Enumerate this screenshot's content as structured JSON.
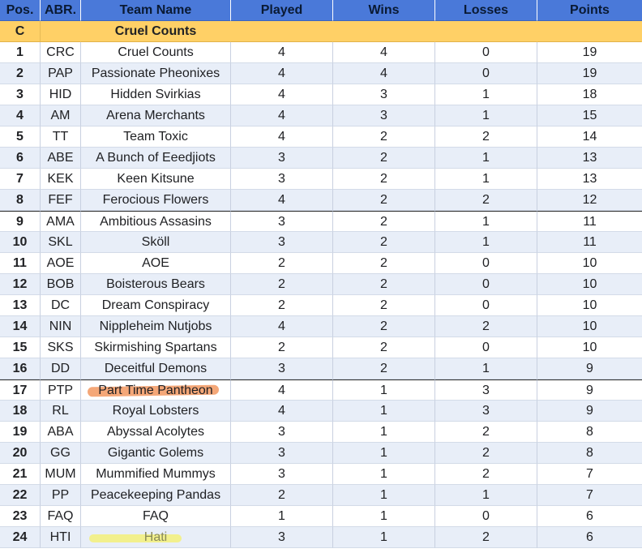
{
  "headers": [
    "Pos.",
    "ABR.",
    "Team Name",
    "Played",
    "Wins",
    "Losses",
    "Points"
  ],
  "group": {
    "letter": "C",
    "name": "Cruel Counts"
  },
  "rows": [
    {
      "pos": "1",
      "abr": "CRC",
      "name": "Cruel Counts",
      "played": "4",
      "wins": "4",
      "losses": "0",
      "points": "19"
    },
    {
      "pos": "2",
      "abr": "PAP",
      "name": "Passionate Pheonixes",
      "played": "4",
      "wins": "4",
      "losses": "0",
      "points": "19"
    },
    {
      "pos": "3",
      "abr": "HID",
      "name": "Hidden Svirkias",
      "played": "4",
      "wins": "3",
      "losses": "1",
      "points": "18"
    },
    {
      "pos": "4",
      "abr": "AM",
      "name": "Arena Merchants",
      "played": "4",
      "wins": "3",
      "losses": "1",
      "points": "15"
    },
    {
      "pos": "5",
      "abr": "TT",
      "name": "Team Toxic",
      "played": "4",
      "wins": "2",
      "losses": "2",
      "points": "14"
    },
    {
      "pos": "6",
      "abr": "ABE",
      "name": "A Bunch of Eeedjiots",
      "played": "3",
      "wins": "2",
      "losses": "1",
      "points": "13"
    },
    {
      "pos": "7",
      "abr": "KEK",
      "name": "Keen Kitsune",
      "played": "3",
      "wins": "2",
      "losses": "1",
      "points": "13"
    },
    {
      "pos": "8",
      "abr": "FEF",
      "name": "Ferocious Flowers",
      "played": "4",
      "wins": "2",
      "losses": "2",
      "points": "12"
    },
    {
      "pos": "9",
      "abr": "AMA",
      "name": "Ambitious Assasins",
      "played": "3",
      "wins": "2",
      "losses": "1",
      "points": "11"
    },
    {
      "pos": "10",
      "abr": "SKL",
      "name": "Sköll",
      "played": "3",
      "wins": "2",
      "losses": "1",
      "points": "11"
    },
    {
      "pos": "11",
      "abr": "AOE",
      "name": "AOE",
      "played": "2",
      "wins": "2",
      "losses": "0",
      "points": "10"
    },
    {
      "pos": "12",
      "abr": "BOB",
      "name": "Boisterous Bears",
      "played": "2",
      "wins": "2",
      "losses": "0",
      "points": "10"
    },
    {
      "pos": "13",
      "abr": "DC",
      "name": "Dream Conspiracy",
      "played": "2",
      "wins": "2",
      "losses": "0",
      "points": "10"
    },
    {
      "pos": "14",
      "abr": "NIN",
      "name": "Nippleheim Nutjobs",
      "played": "4",
      "wins": "2",
      "losses": "2",
      "points": "10"
    },
    {
      "pos": "15",
      "abr": "SKS",
      "name": "Skirmishing Spartans",
      "played": "2",
      "wins": "2",
      "losses": "0",
      "points": "10"
    },
    {
      "pos": "16",
      "abr": "DD",
      "name": "Deceitful Demons",
      "played": "3",
      "wins": "2",
      "losses": "1",
      "points": "9"
    },
    {
      "pos": "17",
      "abr": "PTP",
      "name": "Part Time Pantheon",
      "played": "4",
      "wins": "1",
      "losses": "3",
      "points": "9"
    },
    {
      "pos": "18",
      "abr": "RL",
      "name": "Royal Lobsters",
      "played": "4",
      "wins": "1",
      "losses": "3",
      "points": "9"
    },
    {
      "pos": "19",
      "abr": "ABA",
      "name": "Abyssal Acolytes",
      "played": "3",
      "wins": "1",
      "losses": "2",
      "points": "8"
    },
    {
      "pos": "20",
      "abr": "GG",
      "name": "Gigantic Golems",
      "played": "3",
      "wins": "1",
      "losses": "2",
      "points": "8"
    },
    {
      "pos": "21",
      "abr": "MUM",
      "name": "Mummified Mummys",
      "played": "3",
      "wins": "1",
      "losses": "2",
      "points": "7"
    },
    {
      "pos": "22",
      "abr": "PP",
      "name": "Peacekeeping Pandas",
      "played": "2",
      "wins": "1",
      "losses": "1",
      "points": "7"
    },
    {
      "pos": "23",
      "abr": "FAQ",
      "name": "FAQ",
      "played": "1",
      "wins": "1",
      "losses": "0",
      "points": "6"
    },
    {
      "pos": "24",
      "abr": "HTI",
      "name": "Hati",
      "played": "3",
      "wins": "1",
      "losses": "2",
      "points": "6"
    }
  ],
  "colors": {
    "header_bg": "#4a79d9",
    "group_bg": "#ffd066",
    "row_alt_bg": "#e8eef8",
    "highlight_orange": "#f08a4b",
    "highlight_yellow": "#f5f06a"
  }
}
